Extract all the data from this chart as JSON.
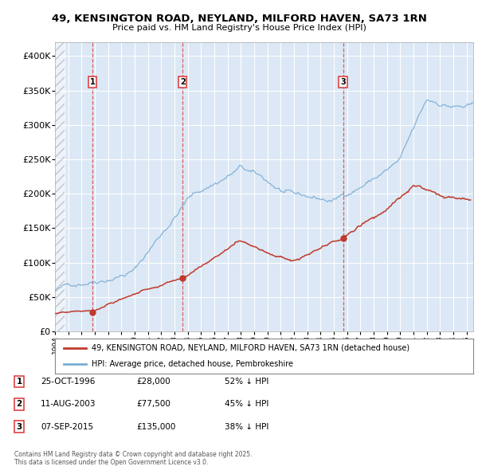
{
  "title": "49, KENSINGTON ROAD, NEYLAND, MILFORD HAVEN, SA73 1RN",
  "subtitle": "Price paid vs. HM Land Registry's House Price Index (HPI)",
  "ylim": [
    0,
    420000
  ],
  "yticks": [
    0,
    50000,
    100000,
    150000,
    200000,
    250000,
    300000,
    350000,
    400000
  ],
  "ytick_labels": [
    "£0",
    "£50K",
    "£100K",
    "£150K",
    "£200K",
    "£250K",
    "£300K",
    "£350K",
    "£400K"
  ],
  "hpi_color": "#7aadd4",
  "price_color": "#c0392b",
  "vline_color": "#dd4444",
  "purchases": [
    {
      "date": 1996.82,
      "price": 28000,
      "label": "1"
    },
    {
      "date": 2003.62,
      "price": 77500,
      "label": "2"
    },
    {
      "date": 2015.69,
      "price": 135000,
      "label": "3"
    }
  ],
  "vline_dates": [
    1996.82,
    2003.62,
    2015.69
  ],
  "legend_entry1": "49, KENSINGTON ROAD, NEYLAND, MILFORD HAVEN, SA73 1RN (detached house)",
  "legend_entry2": "HPI: Average price, detached house, Pembrokeshire",
  "table_entries": [
    {
      "num": "1",
      "date": "25-OCT-1996",
      "price": "£28,000",
      "pct": "52% ↓ HPI"
    },
    {
      "num": "2",
      "date": "11-AUG-2003",
      "price": "£77,500",
      "pct": "45% ↓ HPI"
    },
    {
      "num": "3",
      "date": "07-SEP-2015",
      "price": "£135,000",
      "pct": "38% ↓ HPI"
    }
  ],
  "footer": "Contains HM Land Registry data © Crown copyright and database right 2025.\nThis data is licensed under the Open Government Licence v3.0.",
  "bg_color": "#ffffff",
  "plot_bg": "#dce8f5"
}
